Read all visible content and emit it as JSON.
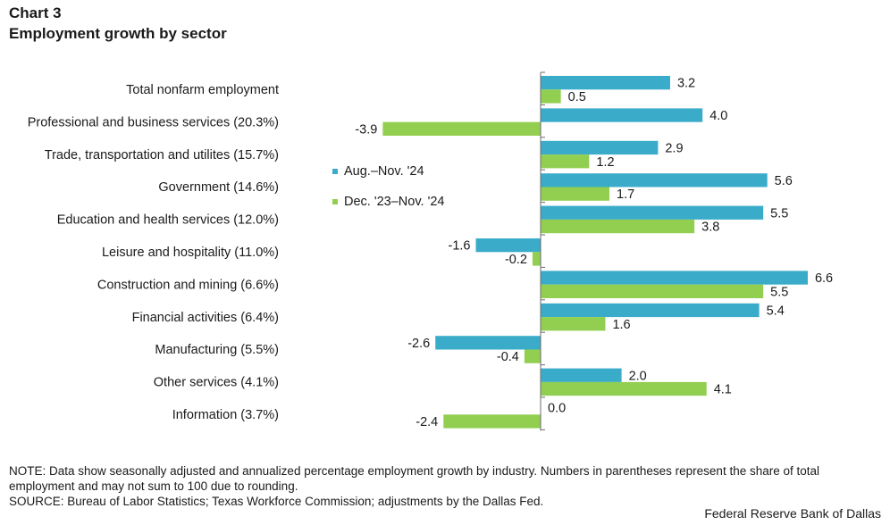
{
  "title_line1": "Chart 3",
  "title_line2": "Employment growth by sector",
  "chart_data": {
    "type": "bar",
    "orientation": "horizontal",
    "categories": [
      "Total nonfarm employment",
      "Professional and business services (20.3%)",
      "Trade, transportation and utilites (15.7%)",
      "Government  (14.6%)",
      "Education and health services (12.0%)",
      "Leisure and hospitality (11.0%)",
      "Construction and mining (6.6%)",
      "Financial activities  (6.4%)",
      "Manufacturing  (5.5%)",
      "Other services  (4.1%)",
      "Information  (3.7%)"
    ],
    "series": [
      {
        "name": "Aug.–Nov. '24",
        "color": "#3aacc9",
        "values": [
          3.2,
          4.0,
          2.9,
          5.6,
          5.5,
          -1.6,
          6.6,
          5.4,
          -2.6,
          2.0,
          0.0
        ],
        "labels": [
          "3.2",
          "4.0",
          "2.9",
          "5.6",
          "5.5",
          "-1.6",
          "6.6",
          "5.4",
          "-2.6",
          "2.0",
          "0.0"
        ]
      },
      {
        "name": "Dec. '23–Nov. '24",
        "color": "#92cf50",
        "values": [
          0.5,
          -3.9,
          1.2,
          1.7,
          3.8,
          -0.2,
          5.5,
          1.6,
          -0.4,
          4.1,
          -2.4
        ],
        "labels": [
          "0.5",
          "-3.9",
          "1.2",
          "1.7",
          "3.8",
          "-0.2",
          "5.5",
          "1.6",
          "-0.4",
          "4.1",
          "-2.4"
        ]
      }
    ],
    "xlim": [
      -4.5,
      7.0
    ],
    "legend_position": "center-left",
    "grid": false
  },
  "note_line1": "NOTE: Data show seasonally adjusted and annualized percentage employment growth by industry. Numbers in parentheses represent the share of total employment and may not sum to 100 due to rounding.",
  "note_line2": "SOURCE: Bureau of Labor Statistics; Texas Workforce Commission; adjustments by the Dallas Fed.",
  "credit": "Federal Reserve Bank of Dallas"
}
